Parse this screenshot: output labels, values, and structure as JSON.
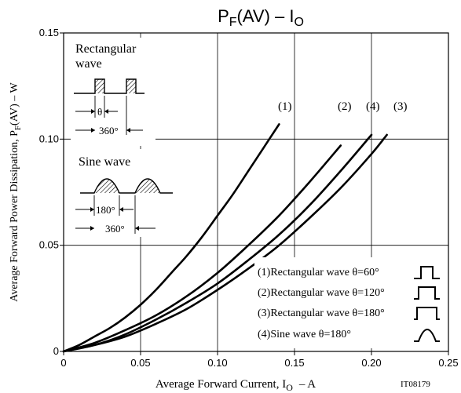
{
  "chart_data": {
    "type": "line",
    "title": "PF(AV) - IO",
    "title_parts": {
      "p": "P",
      "p_sub": "F",
      "mid": "(AV)  –  I",
      "i_sub": "O"
    },
    "xlabel": "Average Forward Current, IO  –  A",
    "xlabel_parts": {
      "main": "Average Forward Current, I",
      "sub": "O",
      "tail": "–  A"
    },
    "ylabel": "Average Forward Power Dissipation, PF(AV)  –  W",
    "ylabel_parts": {
      "main": "Average Forward Power Dissipation, P",
      "sub": "F",
      "tail": "(AV)  –  W"
    },
    "xlim": [
      0,
      0.25
    ],
    "ylim": [
      0,
      0.15
    ],
    "x_ticks": [
      0,
      0.05,
      0.1,
      0.15,
      0.2,
      0.25
    ],
    "x_tick_labels": [
      "0",
      "0.05",
      "0.10",
      "0.15",
      "0.20",
      "0.25"
    ],
    "y_ticks": [
      0,
      0.05,
      0.1,
      0.15
    ],
    "y_tick_labels": [
      "0",
      "0.05",
      "0.10",
      "0.15"
    ],
    "grid": true,
    "series": [
      {
        "name": "(1)",
        "x": [
          0,
          0.01,
          0.02,
          0.03,
          0.04,
          0.05,
          0.06,
          0.07,
          0.08,
          0.09,
          0.1,
          0.11,
          0.12,
          0.13,
          0.14
        ],
        "y": [
          0,
          0.003,
          0.007,
          0.011,
          0.016,
          0.022,
          0.029,
          0.037,
          0.045,
          0.054,
          0.064,
          0.074,
          0.085,
          0.096,
          0.107
        ]
      },
      {
        "name": "(2)",
        "x": [
          0,
          0.02,
          0.04,
          0.06,
          0.08,
          0.1,
          0.12,
          0.14,
          0.16,
          0.18
        ],
        "y": [
          0,
          0.004,
          0.01,
          0.017,
          0.026,
          0.037,
          0.05,
          0.064,
          0.08,
          0.097
        ]
      },
      {
        "name": "(3)",
        "x": [
          0,
          0.02,
          0.04,
          0.06,
          0.08,
          0.1,
          0.12,
          0.14,
          0.16,
          0.18,
          0.2,
          0.21
        ],
        "y": [
          0,
          0.003,
          0.007,
          0.013,
          0.02,
          0.029,
          0.039,
          0.05,
          0.063,
          0.077,
          0.093,
          0.102
        ]
      },
      {
        "name": "(4)",
        "x": [
          0,
          0.02,
          0.04,
          0.06,
          0.08,
          0.1,
          0.12,
          0.14,
          0.16,
          0.18,
          0.2
        ],
        "y": [
          0,
          0.003,
          0.008,
          0.015,
          0.023,
          0.032,
          0.043,
          0.055,
          0.069,
          0.085,
          0.102
        ]
      }
    ],
    "legend": {
      "placement": "bottom-right",
      "entries": [
        {
          "text": "(1)Rectangular wave θ=60°",
          "icon": "rect-pulse-icon"
        },
        {
          "text": "(2)Rectangular wave θ=120°",
          "icon": "rect-pulse-icon"
        },
        {
          "text": "(3)Rectangular wave θ=180°",
          "icon": "rect-pulse-icon"
        },
        {
          "text": "(4)Sine wave θ=180°",
          "icon": "sine-pulse-icon"
        }
      ]
    },
    "inset": {
      "rect_title_1": "Rectangular",
      "rect_title_2": "wave",
      "theta_label": "θ",
      "rect_period_label": "360°",
      "sine_title": "Sine wave",
      "sine_half_label": "180°",
      "sine_period_label": "360°"
    },
    "figure_code": "IT08179"
  }
}
